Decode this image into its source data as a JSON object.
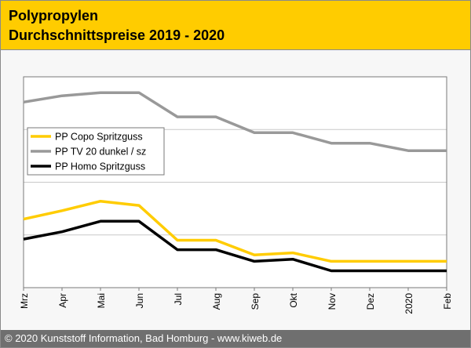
{
  "header": {
    "title_line1": "Polypropylen",
    "title_line2": "Durchschnittspreise 2019 - 2020",
    "background": "#ffcc00"
  },
  "footer": {
    "text": "© 2020 Kunststoff Information, Bad Homburg - www.kiweb.de"
  },
  "chart_data": {
    "type": "line",
    "title": "Polypropylen Durchschnittspreise 2019 - 2020",
    "xlabel": "",
    "ylabel": "",
    "categories": [
      "Mrz",
      "Apr",
      "Mai",
      "Jun",
      "Jul",
      "Aug",
      "Sep",
      "Okt",
      "Nov",
      "Dez",
      "2020",
      "Feb"
    ],
    "ylim": [
      0,
      100
    ],
    "grid": true,
    "legend_position": "middle-left",
    "series": [
      {
        "name": "PP Copo Spritzguss",
        "color": "#ffcc00",
        "values": [
          32.5,
          36.5,
          41.0,
          39.0,
          22.5,
          22.5,
          15.5,
          16.5,
          12.5,
          12.5,
          12.5,
          12.5
        ]
      },
      {
        "name": "PP TV 20 dunkel / sz",
        "color": "#999999",
        "values": [
          88.0,
          91.0,
          92.5,
          92.5,
          81.0,
          81.0,
          73.5,
          73.5,
          68.5,
          68.5,
          65.0,
          65.0
        ]
      },
      {
        "name": "PP Homo Spritzguss",
        "color": "#000000",
        "values": [
          23.0,
          26.5,
          31.5,
          31.5,
          18.0,
          18.0,
          12.5,
          13.5,
          8.0,
          8.0,
          8.0,
          8.0
        ]
      }
    ]
  }
}
